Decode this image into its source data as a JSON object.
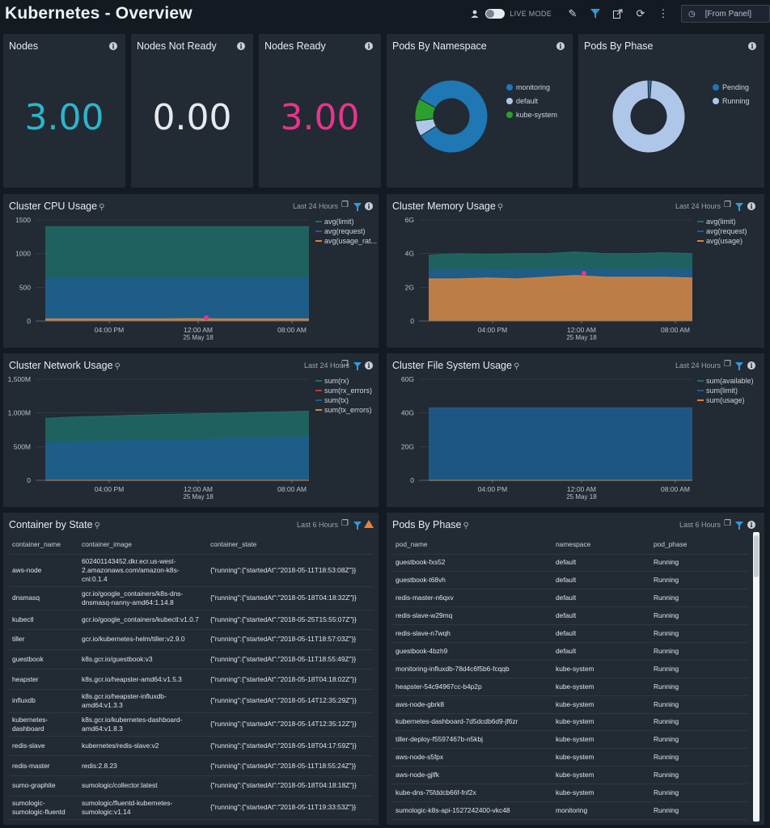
{
  "header": {
    "title": "Kubernetes - Overview",
    "live_mode_label": "LIVE MODE",
    "time_range_value": "[From Panel]"
  },
  "stats": {
    "nodes": {
      "title": "Nodes",
      "value": "3.00",
      "color": "#2bb6cc"
    },
    "nodes_not_ready": {
      "title": "Nodes Not Ready",
      "value": "0.00",
      "color": "#e6eaee"
    },
    "nodes_ready": {
      "title": "Nodes Ready",
      "value": "3.00",
      "color": "#e8348c"
    }
  },
  "pods_by_namespace": {
    "title": "Pods By Namespace",
    "chart_data": {
      "type": "pie",
      "categories": [
        "monitoring",
        "default",
        "kube-system"
      ],
      "values": [
        83,
        7,
        10
      ],
      "colors": [
        "#1f77b4",
        "#aec7e8",
        "#2ca02c"
      ]
    }
  },
  "pods_by_phase_chart": {
    "title": "Pods By Phase",
    "chart_data": {
      "type": "pie",
      "categories": [
        "Pending",
        "Running"
      ],
      "values": [
        1.5,
        98.5
      ],
      "colors": [
        "#1f77b4",
        "#aec7e8"
      ]
    }
  },
  "cpu": {
    "title": "Cluster CPU Usage",
    "range": "Last 24 Hours",
    "chart_data": {
      "type": "area",
      "x_ticks": [
        "04:00 PM",
        "12:00 AM",
        "08:00 AM"
      ],
      "x_sub": "25 May 18",
      "y_ticks": [
        "0",
        "500",
        "1000",
        "1500"
      ],
      "ylim": [
        0,
        1500
      ],
      "series": [
        {
          "name": "avg(limit)",
          "color": "#1e6b66",
          "values": [
            1400,
            1400,
            1400,
            1400,
            1400,
            1400,
            1400,
            1400,
            1400,
            1400
          ]
        },
        {
          "name": "avg(request)",
          "color": "#1f5d8f",
          "values": [
            630,
            630,
            630,
            630,
            630,
            630,
            630,
            630,
            630,
            630
          ]
        },
        {
          "name": "avg(usage_rat...",
          "color": "#d9823b",
          "values": [
            30,
            30,
            30,
            30,
            30,
            35,
            30,
            30,
            30,
            30
          ]
        }
      ]
    }
  },
  "memory": {
    "title": "Cluster Memory Usage",
    "range": "Last 24 Hours",
    "chart_data": {
      "type": "area",
      "x_ticks": [
        "04:00 PM",
        "12:00 AM",
        "08:00 AM"
      ],
      "x_sub": "25 May 18",
      "y_ticks": [
        "0",
        "2G",
        "4G",
        "6G"
      ],
      "ylim": [
        0,
        6
      ],
      "series": [
        {
          "name": "avg(limit)",
          "color": "#1e6b66",
          "values": [
            3.9,
            4.0,
            3.95,
            4.0,
            4.0,
            4.1,
            4.0,
            4.0,
            4.05,
            4.0
          ]
        },
        {
          "name": "avg(request)",
          "color": "#1f5d8f",
          "values": [
            3.0,
            3.05,
            3.0,
            3.0,
            3.05,
            3.1,
            3.05,
            3.05,
            3.1,
            3.05
          ]
        },
        {
          "name": "avg(usage)",
          "color": "#d9823b",
          "values": [
            2.5,
            2.5,
            2.55,
            2.5,
            2.6,
            2.7,
            2.6,
            2.6,
            2.6,
            2.55
          ]
        }
      ]
    }
  },
  "network": {
    "title": "Cluster Network Usage",
    "range": "Last 24 Hours",
    "chart_data": {
      "type": "area",
      "x_ticks": [
        "04:00 PM",
        "12:00 AM",
        "08:00 AM"
      ],
      "x_sub": "25 May 18",
      "y_ticks": [
        "0",
        "500M",
        "1,000M",
        "1,500M"
      ],
      "ylim": [
        0,
        1500
      ],
      "series": [
        {
          "name": "sum(rx)",
          "color": "#1e6b66",
          "values": [
            920,
            940,
            950,
            965,
            975,
            985,
            995,
            1005,
            1015,
            1025
          ]
        },
        {
          "name": "sum(rx_errors)",
          "color": "#c0392b",
          "values": [
            0,
            0,
            0,
            0,
            0,
            0,
            0,
            0,
            0,
            0
          ]
        },
        {
          "name": "sum(tx)",
          "color": "#1f5d8f",
          "values": [
            560,
            570,
            580,
            590,
            600,
            605,
            615,
            625,
            635,
            645
          ]
        },
        {
          "name": "sum(tx_errors)",
          "color": "#d9823b",
          "values": [
            0,
            0,
            0,
            0,
            0,
            0,
            0,
            0,
            0,
            0
          ]
        }
      ]
    }
  },
  "filesystem": {
    "title": "Cluster File System Usage",
    "range": "Last 24 Hours",
    "chart_data": {
      "type": "area",
      "x_ticks": [
        "04:00 PM",
        "12:00 AM",
        "08:00 AM"
      ],
      "x_sub": "25 May 18",
      "y_ticks": [
        "0",
        "20G",
        "40G",
        "60G"
      ],
      "ylim": [
        0,
        60
      ],
      "series": [
        {
          "name": "sum(available)",
          "color": "#1e6b66",
          "values": [
            0,
            0,
            0,
            0,
            0,
            0,
            0,
            0,
            0,
            0
          ]
        },
        {
          "name": "sum(limit)",
          "color": "#1f5d8f",
          "values": [
            43,
            43,
            43,
            43,
            43,
            43,
            43,
            43,
            43,
            43
          ]
        },
        {
          "name": "sum(usage)",
          "color": "#d9823b",
          "values": [
            0,
            0,
            0,
            0,
            0,
            0,
            0,
            0,
            0,
            0
          ]
        }
      ]
    }
  },
  "containers": {
    "title": "Container by State",
    "range": "Last 6 Hours",
    "columns": [
      "container_name",
      "container_image",
      "container_state"
    ],
    "rows": [
      [
        "aws-node",
        "602401143452.dkr.ecr.us-west-2.amazonaws.com/amazon-k8s-cni:0.1.4",
        "{\"running\":{\"startedAt\":\"2018-05-11T18:53:08Z\"}}"
      ],
      [
        "dnsmasq",
        "gcr.io/google_containers/k8s-dns-dnsmasq-nanny-amd64:1.14.8",
        "{\"running\":{\"startedAt\":\"2018-05-18T04:18:32Z\"}}"
      ],
      [
        "kubectl",
        "gcr.io/google_containers/kubectl:v1.0.7",
        "{\"running\":{\"startedAt\":\"2018-05-25T15:55:07Z\"}}"
      ],
      [
        "tiller",
        "gcr.io/kubernetes-helm/tiller:v2.9.0",
        "{\"running\":{\"startedAt\":\"2018-05-11T18:57:03Z\"}}"
      ],
      [
        "guestbook",
        "k8s.gcr.io/guestbook:v3",
        "{\"running\":{\"startedAt\":\"2018-05-11T18:55:49Z\"}}"
      ],
      [
        "heapster",
        "k8s.gcr.io/heapster-amd64:v1.5.3",
        "{\"running\":{\"startedAt\":\"2018-05-18T04:18:02Z\"}}"
      ],
      [
        "influxdb",
        "k8s.gcr.io/heapster-influxdb-amd64:v1.3.3",
        "{\"running\":{\"startedAt\":\"2018-05-14T12:35:29Z\"}}"
      ],
      [
        "kubernetes-dashboard",
        "k8s.gcr.io/kubernetes-dashboard-amd64:v1.8.3",
        "{\"running\":{\"startedAt\":\"2018-05-14T12:35:12Z\"}}"
      ],
      [
        "redis-slave",
        "kubernetes/redis-slave:v2",
        "{\"running\":{\"startedAt\":\"2018-05-18T04:17:59Z\"}}"
      ],
      [
        "redis-master",
        "redis:2.8.23",
        "{\"running\":{\"startedAt\":\"2018-05-11T18:55:24Z\"}}"
      ],
      [
        "sumo-graphite",
        "sumologic/collector:latest",
        "{\"running\":{\"startedAt\":\"2018-05-18T04:18:18Z\"}}"
      ],
      [
        "sumologic-sumologic-fluentd",
        "sumologic/fluentd-kubernetes-sumologic:v1.14",
        "{\"running\":{\"startedAt\":\"2018-05-11T19:33:53Z\"}}"
      ]
    ]
  },
  "pods_table": {
    "title": "Pods By Phase",
    "range": "Last 6 Hours",
    "columns": [
      "pod_name",
      "namespace",
      "pod_phase"
    ],
    "rows": [
      [
        "guestbook-fxs52",
        "default",
        "Running"
      ],
      [
        "guestbook-t68vh",
        "default",
        "Running"
      ],
      [
        "redis-master-n6qxv",
        "default",
        "Running"
      ],
      [
        "redis-slave-w29mq",
        "default",
        "Running"
      ],
      [
        "redis-slave-n7wqh",
        "default",
        "Running"
      ],
      [
        "guestbook-4bzh9",
        "default",
        "Running"
      ],
      [
        "monitoring-influxdb-78d4c6f5b6-fcqqb",
        "kube-system",
        "Running"
      ],
      [
        "heapster-54c94967cc-b4p2p",
        "kube-system",
        "Running"
      ],
      [
        "aws-node-gbrk8",
        "kube-system",
        "Running"
      ],
      [
        "kubernetes-dashboard-7d5dcdb6d9-jf6zr",
        "kube-system",
        "Running"
      ],
      [
        "tiller-deploy-f5597467b-n5kbj",
        "kube-system",
        "Running"
      ],
      [
        "aws-node-s5fpx",
        "kube-system",
        "Running"
      ],
      [
        "aws-node-gjlfk",
        "kube-system",
        "Running"
      ],
      [
        "kube-dns-75fddcb66f-fnf2x",
        "kube-system",
        "Running"
      ],
      [
        "sumologic-k8s-api-1527242400-vkc48",
        "monitoring",
        "Running"
      ]
    ]
  }
}
